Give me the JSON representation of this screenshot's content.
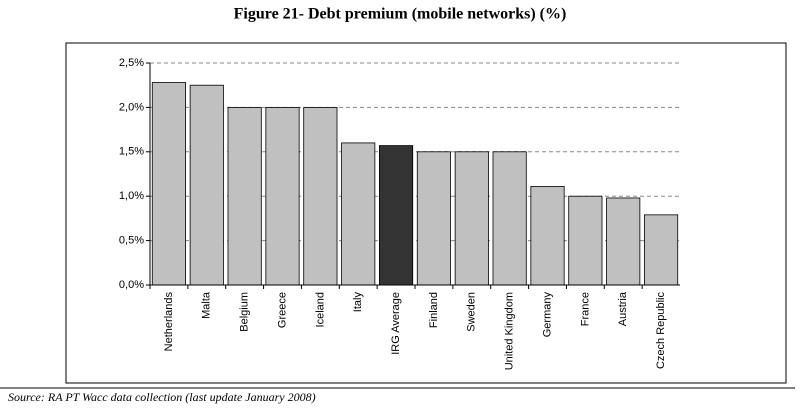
{
  "chart_data": {
    "type": "bar",
    "title": "Figure 21- Debt premium (mobile networks) (%)",
    "categories": [
      "Netherlands",
      "Malta",
      "Belgium",
      "Greece",
      "Iceland",
      "Italy",
      "IRG Average",
      "Finland",
      "Sweden",
      "United Kingdom",
      "Germany",
      "France",
      "Austria",
      "Czech Republic"
    ],
    "values": [
      2.28,
      2.25,
      2.0,
      2.0,
      2.0,
      1.6,
      1.57,
      1.5,
      1.5,
      1.5,
      1.11,
      1.0,
      0.98,
      0.79
    ],
    "colors": [
      "#c0c0c0",
      "#c0c0c0",
      "#c0c0c0",
      "#c0c0c0",
      "#c0c0c0",
      "#c0c0c0",
      "#333333",
      "#c0c0c0",
      "#c0c0c0",
      "#c0c0c0",
      "#c0c0c0",
      "#c0c0c0",
      "#c0c0c0",
      "#c0c0c0"
    ],
    "ylim": [
      0,
      2.5
    ],
    "yticks": [
      {
        "value": 0,
        "label": "0,0%"
      },
      {
        "value": 0.5,
        "label": "0,5%"
      },
      {
        "value": 1.0,
        "label": "1,0%"
      },
      {
        "value": 1.5,
        "label": "1,5%"
      },
      {
        "value": 2.0,
        "label": "2,0%"
      },
      {
        "value": 2.5,
        "label": "2,5%"
      }
    ],
    "grid": true,
    "source": "Source: RA PT Wacc data collection (last update January 2008)"
  }
}
